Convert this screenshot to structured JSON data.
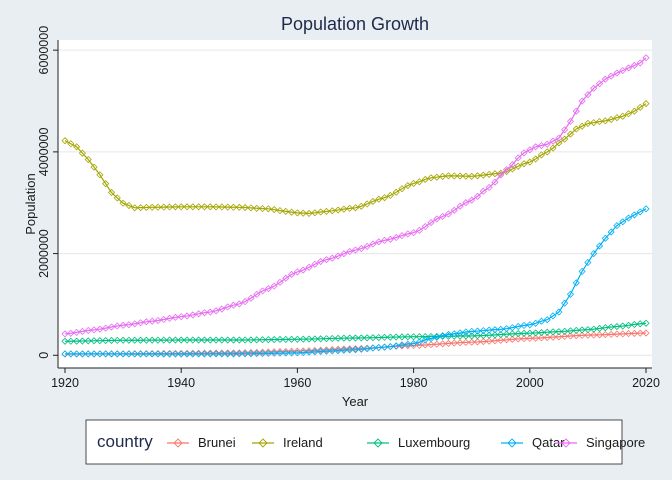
{
  "chart_data": {
    "type": "line",
    "title": "Population Growth",
    "xlabel": "Year",
    "ylabel": "Population",
    "xlim": [
      1920,
      2020
    ],
    "ylim": [
      -250000,
      6200000
    ],
    "xticks": [
      1920,
      1940,
      1960,
      1980,
      2000,
      2020
    ],
    "yticks": [
      0,
      2000000,
      4000000,
      6000000
    ],
    "xtick_labels": [
      "1920",
      "1940",
      "1960",
      "1980",
      "2000",
      "2020"
    ],
    "ytick_labels": [
      "0",
      "2000000",
      "4000000",
      "6000000"
    ],
    "grid": true,
    "legend_title": "country",
    "legend_position": "bottom",
    "series": [
      {
        "name": "Brunei",
        "color": "#f8766d",
        "points": [
          [
            1920,
            25000
          ],
          [
            1930,
            30000
          ],
          [
            1940,
            38000
          ],
          [
            1950,
            48000
          ],
          [
            1960,
            82000
          ],
          [
            1970,
            130000
          ],
          [
            1980,
            193000
          ],
          [
            1990,
            258000
          ],
          [
            2000,
            333000
          ],
          [
            2010,
            396000
          ],
          [
            2020,
            437000
          ]
        ]
      },
      {
        "name": "Ireland",
        "color": "#a3a500",
        "points": [
          [
            1920,
            4220000
          ],
          [
            1922,
            4100000
          ],
          [
            1924,
            3850000
          ],
          [
            1926,
            3550000
          ],
          [
            1928,
            3200000
          ],
          [
            1930,
            2990000
          ],
          [
            1932,
            2900000
          ],
          [
            1935,
            2910000
          ],
          [
            1940,
            2920000
          ],
          [
            1945,
            2920000
          ],
          [
            1950,
            2910000
          ],
          [
            1955,
            2880000
          ],
          [
            1958,
            2830000
          ],
          [
            1960,
            2800000
          ],
          [
            1962,
            2790000
          ],
          [
            1965,
            2830000
          ],
          [
            1970,
            2900000
          ],
          [
            1975,
            3100000
          ],
          [
            1980,
            3380000
          ],
          [
            1983,
            3490000
          ],
          [
            1986,
            3530000
          ],
          [
            1990,
            3520000
          ],
          [
            1995,
            3580000
          ],
          [
            2000,
            3800000
          ],
          [
            2003,
            4000000
          ],
          [
            2006,
            4250000
          ],
          [
            2008,
            4450000
          ],
          [
            2010,
            4560000
          ],
          [
            2013,
            4610000
          ],
          [
            2016,
            4700000
          ],
          [
            2018,
            4800000
          ],
          [
            2020,
            4950000
          ]
        ]
      },
      {
        "name": "Luxembourg",
        "color": "#00bf7d",
        "points": [
          [
            1920,
            275000
          ],
          [
            1930,
            295000
          ],
          [
            1940,
            300000
          ],
          [
            1950,
            300000
          ],
          [
            1960,
            315000
          ],
          [
            1970,
            340000
          ],
          [
            1980,
            365000
          ],
          [
            1990,
            380000
          ],
          [
            2000,
            435000
          ],
          [
            2005,
            465000
          ],
          [
            2010,
            505000
          ],
          [
            2015,
            565000
          ],
          [
            2020,
            630000
          ]
        ]
      },
      {
        "name": "Qatar",
        "color": "#00b0f6",
        "points": [
          [
            1920,
            28000
          ],
          [
            1930,
            26000
          ],
          [
            1940,
            25000
          ],
          [
            1950,
            28000
          ],
          [
            1960,
            48000
          ],
          [
            1965,
            80000
          ],
          [
            1970,
            110000
          ],
          [
            1975,
            160000
          ],
          [
            1980,
            230000
          ],
          [
            1983,
            330000
          ],
          [
            1986,
            410000
          ],
          [
            1990,
            470000
          ],
          [
            1995,
            510000
          ],
          [
            2000,
            600000
          ],
          [
            2003,
            700000
          ],
          [
            2005,
            850000
          ],
          [
            2007,
            1200000
          ],
          [
            2009,
            1650000
          ],
          [
            2011,
            2000000
          ],
          [
            2013,
            2300000
          ],
          [
            2015,
            2550000
          ],
          [
            2017,
            2700000
          ],
          [
            2019,
            2820000
          ],
          [
            2020,
            2880000
          ]
        ]
      },
      {
        "name": "Singapore",
        "color": "#e76bf3",
        "points": [
          [
            1920,
            420000
          ],
          [
            1925,
            500000
          ],
          [
            1930,
            590000
          ],
          [
            1935,
            670000
          ],
          [
            1940,
            760000
          ],
          [
            1945,
            850000
          ],
          [
            1950,
            1010000
          ],
          [
            1955,
            1310000
          ],
          [
            1960,
            1640000
          ],
          [
            1965,
            1880000
          ],
          [
            1970,
            2070000
          ],
          [
            1975,
            2260000
          ],
          [
            1980,
            2410000
          ],
          [
            1985,
            2730000
          ],
          [
            1990,
            3050000
          ],
          [
            1993,
            3300000
          ],
          [
            1996,
            3650000
          ],
          [
            1999,
            3980000
          ],
          [
            2001,
            4100000
          ],
          [
            2003,
            4150000
          ],
          [
            2005,
            4270000
          ],
          [
            2007,
            4600000
          ],
          [
            2009,
            5000000
          ],
          [
            2011,
            5250000
          ],
          [
            2013,
            5430000
          ],
          [
            2015,
            5550000
          ],
          [
            2017,
            5650000
          ],
          [
            2019,
            5750000
          ],
          [
            2020,
            5850000
          ]
        ]
      }
    ]
  }
}
